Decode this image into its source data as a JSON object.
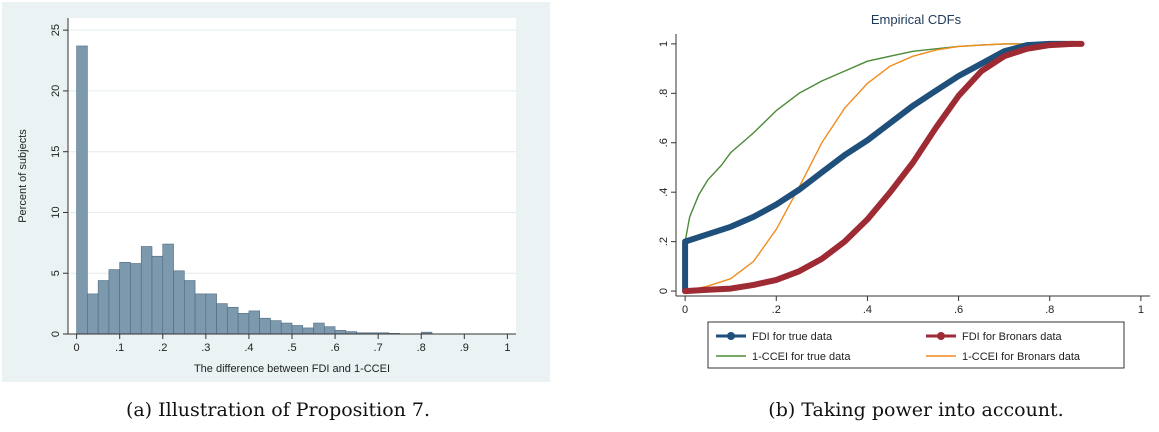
{
  "chart_data": [
    {
      "type": "bar",
      "title": "",
      "xlabel": "The difference between FDI and 1-CCEI",
      "ylabel": "Percent of subjects",
      "xlim": [
        -0.02,
        1.02
      ],
      "ylim": [
        0,
        26
      ],
      "x_ticks": [
        0,
        0.1,
        0.2,
        0.3,
        0.4,
        0.5,
        0.6,
        0.7,
        0.8,
        0.9,
        1
      ],
      "x_tick_labels": [
        "0",
        ".1",
        ".2",
        ".3",
        ".4",
        ".5",
        ".6",
        ".7",
        ".8",
        ".9",
        "1"
      ],
      "y_ticks": [
        0,
        5,
        10,
        15,
        20,
        25
      ],
      "y_tick_labels": [
        "0",
        "5",
        "10",
        "15",
        "20",
        "25"
      ],
      "grid": true,
      "bar_width": 0.025,
      "bins": [
        0,
        0.025,
        0.05,
        0.075,
        0.1,
        0.125,
        0.15,
        0.175,
        0.2,
        0.225,
        0.25,
        0.275,
        0.3,
        0.325,
        0.35,
        0.375,
        0.4,
        0.425,
        0.45,
        0.475,
        0.5,
        0.525,
        0.55,
        0.575,
        0.6,
        0.625,
        0.65,
        0.675,
        0.7,
        0.725,
        0.8
      ],
      "values": [
        23.7,
        3.3,
        4.4,
        5.3,
        5.9,
        5.8,
        7.2,
        6.4,
        7.4,
        5.2,
        4.4,
        3.3,
        3.3,
        2.5,
        2.2,
        1.7,
        1.9,
        1.3,
        1.1,
        0.9,
        0.7,
        0.5,
        0.9,
        0.6,
        0.3,
        0.2,
        0.1,
        0.1,
        0.1,
        0.05,
        0.15
      ],
      "caption": "(a) Illustration of Proposition 7."
    },
    {
      "type": "line",
      "title": "Empirical CDFs",
      "xlabel": "",
      "ylabel": "",
      "xlim": [
        -0.02,
        1.02
      ],
      "ylim": [
        -0.02,
        1.04
      ],
      "x_ticks": [
        0,
        0.2,
        0.4,
        0.6,
        0.8,
        1
      ],
      "x_tick_labels": [
        "0",
        ".2",
        ".4",
        ".6",
        ".8",
        "1"
      ],
      "y_ticks": [
        0,
        0.2,
        0.4,
        0.6,
        0.8,
        1
      ],
      "y_tick_labels": [
        "0",
        ".2",
        ".4",
        ".6",
        ".8",
        "1"
      ],
      "grid": false,
      "legend_position": "bottom",
      "series": [
        {
          "name": "FDI for true data",
          "color": "#1f4f7b",
          "style": "thick-dots",
          "x": [
            0,
            0,
            0.05,
            0.1,
            0.15,
            0.2,
            0.25,
            0.3,
            0.35,
            0.4,
            0.45,
            0.5,
            0.55,
            0.6,
            0.65,
            0.7,
            0.75,
            0.8,
            0.85
          ],
          "y": [
            0,
            0.2,
            0.23,
            0.26,
            0.3,
            0.35,
            0.41,
            0.48,
            0.55,
            0.61,
            0.68,
            0.75,
            0.81,
            0.87,
            0.92,
            0.97,
            0.995,
            1,
            1
          ]
        },
        {
          "name": "FDI for Bronars data",
          "color": "#9e2a33",
          "style": "thick-dots",
          "x": [
            0,
            0.05,
            0.1,
            0.15,
            0.2,
            0.25,
            0.3,
            0.35,
            0.4,
            0.45,
            0.5,
            0.55,
            0.6,
            0.65,
            0.7,
            0.75,
            0.8,
            0.85,
            0.87
          ],
          "y": [
            0,
            0.005,
            0.01,
            0.025,
            0.045,
            0.08,
            0.13,
            0.2,
            0.29,
            0.4,
            0.52,
            0.66,
            0.79,
            0.89,
            0.95,
            0.98,
            0.995,
            1,
            1
          ]
        },
        {
          "name": "1-CCEI for true data",
          "color": "#4b8a37",
          "style": "thin",
          "x": [
            0,
            0,
            0.01,
            0.03,
            0.05,
            0.08,
            0.1,
            0.15,
            0.2,
            0.25,
            0.3,
            0.35,
            0.4,
            0.45,
            0.5,
            0.55,
            0.6,
            0.65,
            0.7,
            0.75,
            0.8,
            0.85
          ],
          "y": [
            0,
            0.2,
            0.3,
            0.39,
            0.45,
            0.51,
            0.56,
            0.64,
            0.73,
            0.8,
            0.85,
            0.89,
            0.93,
            0.95,
            0.97,
            0.98,
            0.99,
            0.995,
            1,
            1,
            1,
            1
          ]
        },
        {
          "name": "1-CCEI for Bronars data",
          "color": "#f08c1e",
          "style": "thin",
          "x": [
            0,
            0.05,
            0.1,
            0.15,
            0.2,
            0.25,
            0.3,
            0.35,
            0.4,
            0.45,
            0.5,
            0.55,
            0.6,
            0.65,
            0.7,
            0.75,
            0.8,
            0.85
          ],
          "y": [
            0,
            0.02,
            0.05,
            0.12,
            0.25,
            0.42,
            0.6,
            0.74,
            0.84,
            0.91,
            0.95,
            0.975,
            0.99,
            0.995,
            1,
            1,
            1,
            1
          ]
        }
      ],
      "caption": "(b) Taking power into account."
    }
  ]
}
